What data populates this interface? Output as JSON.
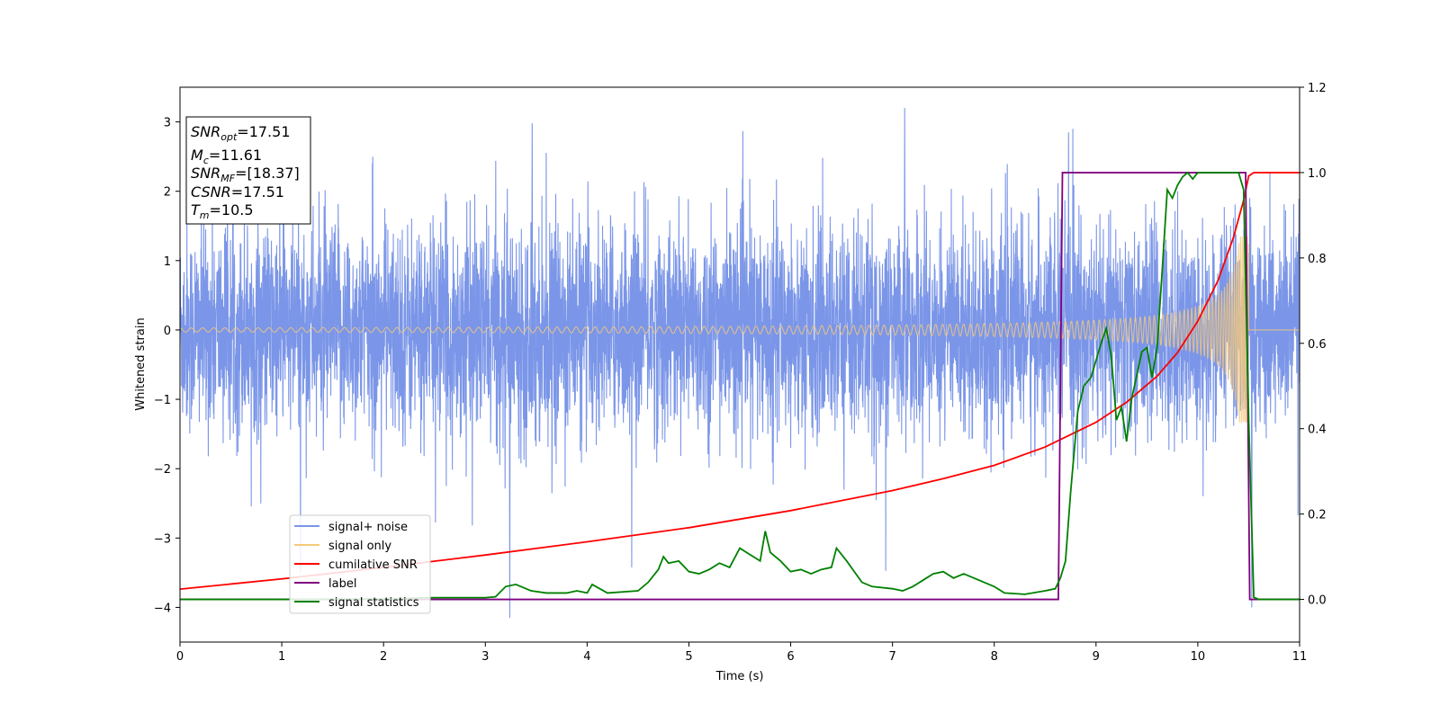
{
  "chart_data": {
    "type": "line",
    "xlabel": "Time (s)",
    "ylabel": "Whitened strain",
    "xlim": [
      0,
      11
    ],
    "ylim_left": [
      -4.5,
      3.5
    ],
    "ylim_right": [
      -0.1,
      1.2
    ],
    "x_ticks": [
      "0",
      "1",
      "2",
      "3",
      "4",
      "5",
      "6",
      "7",
      "8",
      "9",
      "10",
      "11"
    ],
    "y_ticks_left": [
      "3",
      "2",
      "1",
      "0",
      "−1",
      "−2",
      "−3",
      "−4"
    ],
    "y_ticks_right": [
      "1.2",
      "1.0",
      "0.8",
      "0.6",
      "0.4",
      "0.2",
      "0.0"
    ],
    "info_box": {
      "snr_opt_label": "SNR",
      "snr_opt_sub": "opt",
      "snr_opt_value": "=17.51",
      "mc_label": "M",
      "mc_sub": "c",
      "mc_value": "=11.61",
      "snr_mf_label": "SNR",
      "snr_mf_sub": "MF",
      "snr_mf_value": "=[18.37]",
      "csnr_label": "CSNR",
      "csnr_value": "=17.51",
      "tm_label": "T",
      "tm_sub": "m",
      "tm_value": "=10.5"
    },
    "legend": {
      "placement": "lower-left",
      "entries": [
        "signal+ noise",
        "signal only",
        "cumilative SNR",
        "label",
        "signal statistics"
      ]
    },
    "colors": {
      "noise": "#7b96e8",
      "signal": "#f6c97a",
      "cumulative_snr": "#ff0000",
      "label": "#800080",
      "statistics": "#008000"
    },
    "series": [
      {
        "name": "signal+ noise",
        "axis": "left",
        "description_of_shape": "noisy series",
        "amplitude_std": 0.75,
        "outliers": [
          [
            3.24,
            -4.15
          ],
          [
            7.12,
            3.2
          ],
          [
            8.73,
            2.85
          ],
          [
            10.53,
            -4.0
          ],
          [
            1.02,
            1.8
          ],
          [
            3.46,
            2.98
          ]
        ]
      },
      {
        "name": "signal only",
        "axis": "left",
        "amp_start": 0.03,
        "amp_peak": 1.35,
        "merger_time": 10.5,
        "cycles_start": 0.08
      },
      {
        "name": "cumilative SNR",
        "axis": "right",
        "x": [
          0,
          1,
          2,
          3,
          4,
          5,
          6,
          7,
          7.5,
          8,
          8.5,
          9,
          9.3,
          9.6,
          9.8,
          10,
          10.2,
          10.35,
          10.45,
          10.5,
          10.55,
          11
        ],
        "y": [
          0.024,
          0.048,
          0.075,
          0.104,
          0.135,
          0.168,
          0.208,
          0.255,
          0.283,
          0.314,
          0.357,
          0.415,
          0.462,
          0.523,
          0.578,
          0.652,
          0.748,
          0.848,
          0.935,
          0.992,
          1.0,
          1.0
        ]
      },
      {
        "name": "label",
        "axis": "right",
        "x": [
          0,
          8.63,
          8.67,
          10.47,
          10.51,
          11
        ],
        "y": [
          0,
          0,
          1,
          1,
          0,
          0
        ]
      },
      {
        "name": "signal statistics",
        "axis": "right",
        "x": [
          0,
          1,
          2,
          2.5,
          3,
          3.1,
          3.2,
          3.3,
          3.45,
          3.6,
          3.8,
          3.9,
          4.0,
          4.05,
          4.2,
          4.5,
          4.6,
          4.7,
          4.75,
          4.8,
          4.9,
          5.0,
          5.1,
          5.2,
          5.3,
          5.4,
          5.5,
          5.6,
          5.7,
          5.75,
          5.8,
          5.9,
          6.0,
          6.1,
          6.2,
          6.3,
          6.4,
          6.45,
          6.55,
          6.7,
          6.8,
          7.0,
          7.1,
          7.2,
          7.3,
          7.4,
          7.5,
          7.6,
          7.7,
          7.8,
          7.9,
          8.0,
          8.1,
          8.3,
          8.5,
          8.6,
          8.65,
          8.7,
          8.75,
          8.82,
          8.88,
          8.95,
          9.0,
          9.05,
          9.1,
          9.15,
          9.2,
          9.25,
          9.3,
          9.35,
          9.45,
          9.5,
          9.55,
          9.6,
          9.65,
          9.7,
          9.75,
          9.8,
          9.85,
          9.9,
          9.95,
          10.0,
          10.1,
          10.2,
          10.3,
          10.4,
          10.45,
          10.5,
          10.55,
          10.6,
          10.7,
          11
        ],
        "y": [
          0,
          0,
          0.001,
          0.004,
          0.004,
          0.006,
          0.03,
          0.035,
          0.02,
          0.015,
          0.015,
          0.02,
          0.015,
          0.035,
          0.015,
          0.02,
          0.04,
          0.07,
          0.1,
          0.085,
          0.09,
          0.065,
          0.06,
          0.07,
          0.085,
          0.075,
          0.12,
          0.105,
          0.09,
          0.16,
          0.11,
          0.09,
          0.065,
          0.07,
          0.06,
          0.07,
          0.075,
          0.12,
          0.09,
          0.04,
          0.03,
          0.025,
          0.02,
          0.03,
          0.045,
          0.06,
          0.065,
          0.05,
          0.06,
          0.05,
          0.04,
          0.03,
          0.015,
          0.012,
          0.02,
          0.025,
          0.05,
          0.09,
          0.25,
          0.44,
          0.5,
          0.52,
          0.56,
          0.6,
          0.635,
          0.57,
          0.42,
          0.45,
          0.37,
          0.47,
          0.58,
          0.59,
          0.52,
          0.59,
          0.77,
          0.96,
          0.94,
          0.97,
          0.99,
          1.0,
          0.985,
          1.0,
          1.0,
          1.0,
          1.0,
          1.0,
          0.96,
          0.42,
          0.005,
          0.0,
          0.0,
          0.0
        ]
      }
    ]
  }
}
